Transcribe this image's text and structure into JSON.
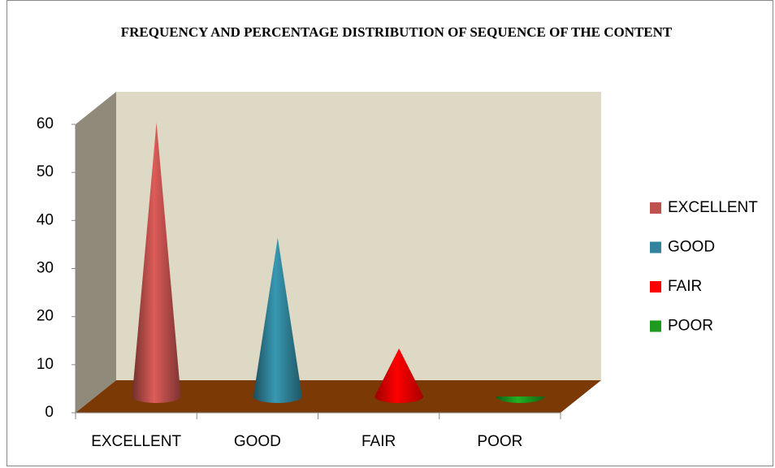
{
  "chart_data": {
    "type": "cone",
    "title": "FREQUENCY AND PERCENTAGE DISTRIBUTION OF SEQUENCE OF THE CONTENT",
    "categories": [
      "EXCELLENT",
      "GOOD",
      "FAIR",
      "POOR"
    ],
    "values": [
      57,
      33,
      10,
      0
    ],
    "colors": [
      "#c0504d",
      "#31849b",
      "#ff0000",
      "#1e9a1e"
    ],
    "ylim": [
      0,
      60
    ],
    "yticks": [
      0,
      10,
      20,
      30,
      40,
      50,
      60
    ],
    "legend": "right",
    "grid": false
  }
}
